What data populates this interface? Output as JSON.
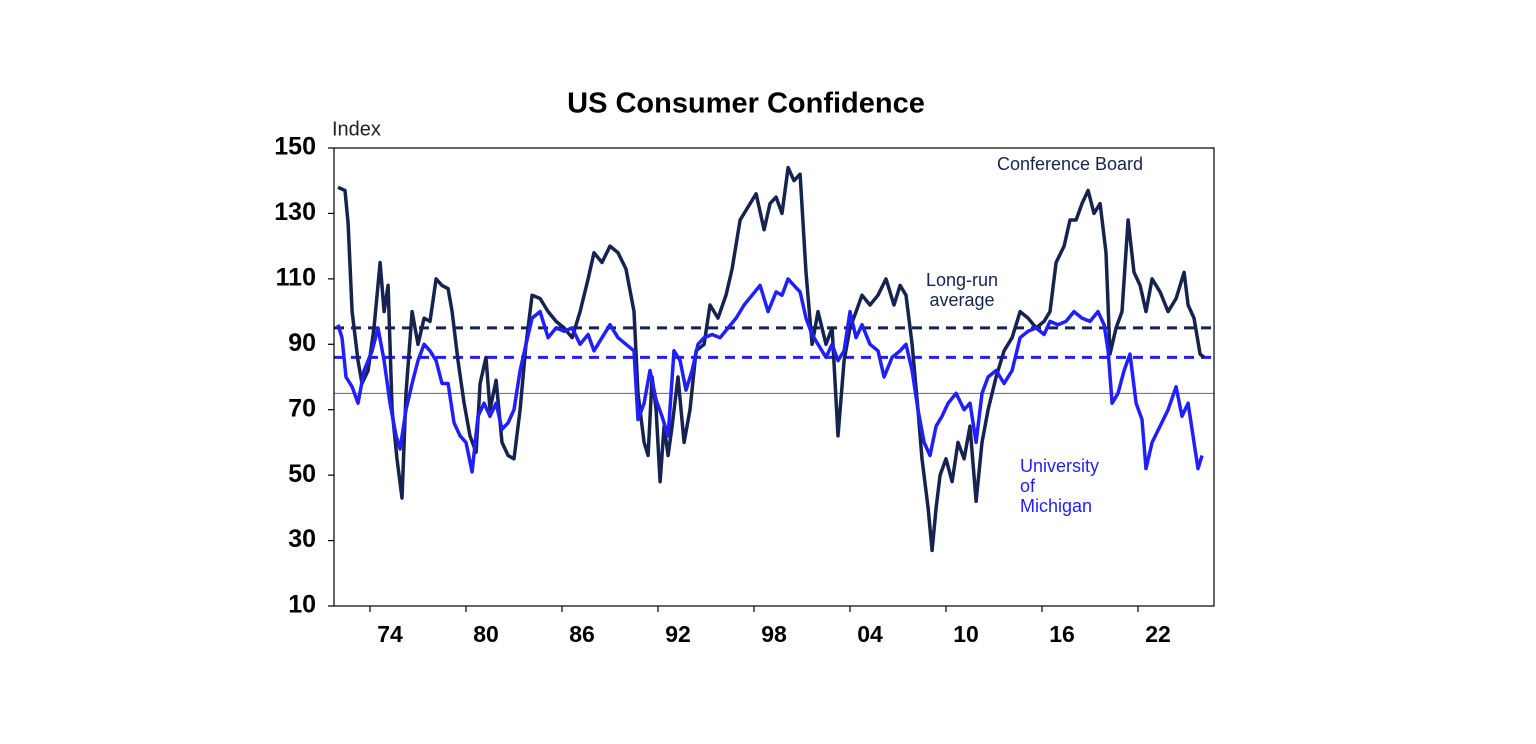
{
  "chart_data": {
    "type": "line",
    "title": "US Consumer Confidence",
    "ylabel": "Index",
    "xlim": [
      1971.75,
      2026.75
    ],
    "ylim": [
      10,
      150
    ],
    "yticks": [
      10,
      30,
      50,
      70,
      90,
      110,
      130,
      150
    ],
    "xticks": [
      {
        "value": 1974,
        "label": "74"
      },
      {
        "value": 1980,
        "label": "80"
      },
      {
        "value": 1986,
        "label": "86"
      },
      {
        "value": 1992,
        "label": "92"
      },
      {
        "value": 1998,
        "label": "98"
      },
      {
        "value": 2004,
        "label": "04"
      },
      {
        "value": 2010,
        "label": "10"
      },
      {
        "value": 2016,
        "label": "16"
      },
      {
        "value": 2022,
        "label": "22"
      }
    ],
    "reference_lines": [
      {
        "value": 95,
        "color": "#16234f",
        "style": "dashed"
      },
      {
        "value": 86,
        "color": "#1f1fff",
        "style": "dashed"
      },
      {
        "value": 75,
        "color": "#666666",
        "style": "solid"
      }
    ],
    "annotations": [
      [
        "Conference Board"
      ],
      [
        "Long-run",
        "average"
      ],
      [
        "University",
        "of",
        "Michigan"
      ]
    ],
    "series": [
      {
        "name": "Conference Board",
        "color": "#16234f",
        "x": [
          1972.0,
          1972.44,
          1972.63,
          1972.88,
          1973.25,
          1973.5,
          1973.88,
          1974.25,
          1974.63,
          1974.88,
          1975.13,
          1975.38,
          1975.69,
          1976.0,
          1976.25,
          1976.63,
          1977.0,
          1977.38,
          1977.75,
          1978.13,
          1978.5,
          1978.88,
          1979.13,
          1979.5,
          1979.88,
          1980.25,
          1980.63,
          1980.88,
          1981.25,
          1981.5,
          1981.88,
          1982.25,
          1982.63,
          1983.0,
          1983.38,
          1983.75,
          1984.13,
          1984.63,
          1985.13,
          1985.63,
          1986.13,
          1986.63,
          1987.13,
          1987.63,
          1988.0,
          1988.5,
          1989.0,
          1989.5,
          1990.0,
          1990.5,
          1990.75,
          1991.13,
          1991.38,
          1991.63,
          1991.88,
          1992.13,
          1992.38,
          1992.63,
          1992.88,
          1993.25,
          1993.63,
          1994.0,
          1994.38,
          1994.88,
          1995.25,
          1995.75,
          1996.25,
          1996.63,
          1997.13,
          1997.63,
          1998.13,
          1998.63,
          1999.0,
          1999.38,
          1999.75,
          2000.13,
          2000.5,
          2000.88,
          2001.25,
          2001.63,
          2002.0,
          2002.5,
          2002.88,
          2003.25,
          2003.63,
          2004.0,
          2004.38,
          2004.75,
          2005.25,
          2005.75,
          2006.25,
          2006.75,
          2007.13,
          2007.5,
          2007.88,
          2008.25,
          2008.5,
          2008.88,
          2009.13,
          2009.38,
          2009.63,
          2010.0,
          2010.38,
          2010.75,
          2011.13,
          2011.5,
          2011.88,
          2012.25,
          2012.63,
          2013.13,
          2013.63,
          2014.13,
          2014.63,
          2015.13,
          2015.63,
          2016.13,
          2016.5,
          2016.88,
          2017.38,
          2017.75,
          2018.13,
          2018.5,
          2018.88,
          2019.25,
          2019.63,
          2020.0,
          2020.25,
          2020.63,
          2021.0,
          2021.38,
          2021.75,
          2022.13,
          2022.5,
          2022.88,
          2023.38,
          2023.88,
          2024.38,
          2024.88,
          2025.13,
          2025.5,
          2025.88,
          2026.13
        ],
        "values": [
          138,
          137,
          127,
          100,
          85,
          78,
          82,
          95,
          115,
          100,
          108,
          70,
          55,
          43,
          75,
          100,
          90,
          98,
          97,
          110,
          108,
          107,
          100,
          85,
          72,
          62,
          57,
          78,
          86,
          70,
          79,
          60,
          56,
          55,
          70,
          90,
          105,
          104,
          100,
          97,
          95,
          92,
          100,
          110,
          118,
          115,
          120,
          118,
          113,
          100,
          75,
          60,
          56,
          80,
          70,
          48,
          65,
          56,
          65,
          80,
          60,
          70,
          88,
          90,
          102,
          98,
          105,
          113,
          128,
          132,
          136,
          125,
          133,
          135,
          130,
          144,
          140,
          142,
          112,
          90,
          100,
          90,
          95,
          62,
          85,
          95,
          100,
          105,
          102,
          105,
          110,
          102,
          108,
          105,
          90,
          70,
          55,
          40,
          27,
          40,
          50,
          55,
          48,
          60,
          55,
          65,
          42,
          60,
          70,
          80,
          88,
          92,
          100,
          98,
          95,
          97,
          100,
          115,
          120,
          128,
          128,
          133,
          137,
          130,
          133,
          118,
          87,
          95,
          100,
          128,
          112,
          108,
          100,
          110,
          106,
          100,
          104,
          112,
          102,
          98,
          87,
          86
        ]
      },
      {
        "name": "University of Michigan",
        "color": "#1f1fff",
        "x": [
          1972.0,
          1972.25,
          1972.5,
          1972.88,
          1973.25,
          1973.63,
          1974.13,
          1974.5,
          1974.88,
          1975.25,
          1975.63,
          1975.88,
          1976.25,
          1976.63,
          1977.0,
          1977.38,
          1977.75,
          1978.13,
          1978.5,
          1978.88,
          1979.25,
          1979.63,
          1980.0,
          1980.38,
          1980.75,
          1981.13,
          1981.5,
          1981.88,
          1982.25,
          1982.63,
          1983.0,
          1983.38,
          1983.75,
          1984.13,
          1984.63,
          1985.13,
          1985.63,
          1986.13,
          1986.63,
          1987.13,
          1987.63,
          1988.0,
          1988.5,
          1989.0,
          1989.5,
          1990.0,
          1990.5,
          1990.75,
          1991.13,
          1991.5,
          1991.88,
          1992.25,
          1992.63,
          1993.0,
          1993.38,
          1993.75,
          1994.13,
          1994.5,
          1994.88,
          1995.38,
          1995.88,
          1996.38,
          1996.88,
          1997.38,
          1997.88,
          1998.38,
          1998.88,
          1999.38,
          1999.75,
          2000.13,
          2000.5,
          2000.88,
          2001.25,
          2001.63,
          2002.0,
          2002.5,
          2002.88,
          2003.25,
          2003.63,
          2004.0,
          2004.38,
          2004.75,
          2005.25,
          2005.75,
          2006.13,
          2006.63,
          2007.13,
          2007.5,
          2007.88,
          2008.25,
          2008.63,
          2009.0,
          2009.38,
          2009.75,
          2010.13,
          2010.63,
          2011.13,
          2011.5,
          2011.88,
          2012.25,
          2012.63,
          2013.13,
          2013.63,
          2014.13,
          2014.63,
          2015.13,
          2015.63,
          2016.13,
          2016.5,
          2017.0,
          2017.5,
          2018.0,
          2018.5,
          2019.0,
          2019.5,
          2019.88,
          2020.13,
          2020.38,
          2020.75,
          2021.13,
          2021.5,
          2021.88,
          2022.25,
          2022.5,
          2022.88,
          2023.38,
          2023.88,
          2024.38,
          2024.75,
          2025.13,
          2025.5,
          2025.75,
          2026.0
        ],
        "values": [
          96,
          92,
          80,
          77,
          72,
          82,
          88,
          95,
          85,
          72,
          62,
          58,
          70,
          78,
          85,
          90,
          88,
          85,
          78,
          78,
          66,
          62,
          60,
          51,
          68,
          72,
          68,
          72,
          64,
          66,
          70,
          82,
          90,
          98,
          100,
          92,
          95,
          94,
          95,
          90,
          93,
          88,
          92,
          96,
          92,
          90,
          88,
          67,
          72,
          82,
          73,
          68,
          62,
          88,
          85,
          76,
          82,
          90,
          92,
          93,
          92,
          95,
          98,
          102,
          105,
          108,
          100,
          106,
          105,
          110,
          108,
          106,
          98,
          93,
          90,
          86,
          90,
          85,
          88,
          100,
          92,
          96,
          90,
          88,
          80,
          86,
          88,
          90,
          82,
          70,
          60,
          56,
          65,
          68,
          72,
          75,
          70,
          72,
          60,
          75,
          80,
          82,
          78,
          82,
          92,
          94,
          95,
          93,
          97,
          96,
          97,
          100,
          98,
          97,
          100,
          96,
          88,
          72,
          75,
          82,
          87,
          72,
          67,
          52,
          60,
          65,
          70,
          77,
          68,
          72,
          60,
          52,
          56
        ]
      }
    ]
  }
}
